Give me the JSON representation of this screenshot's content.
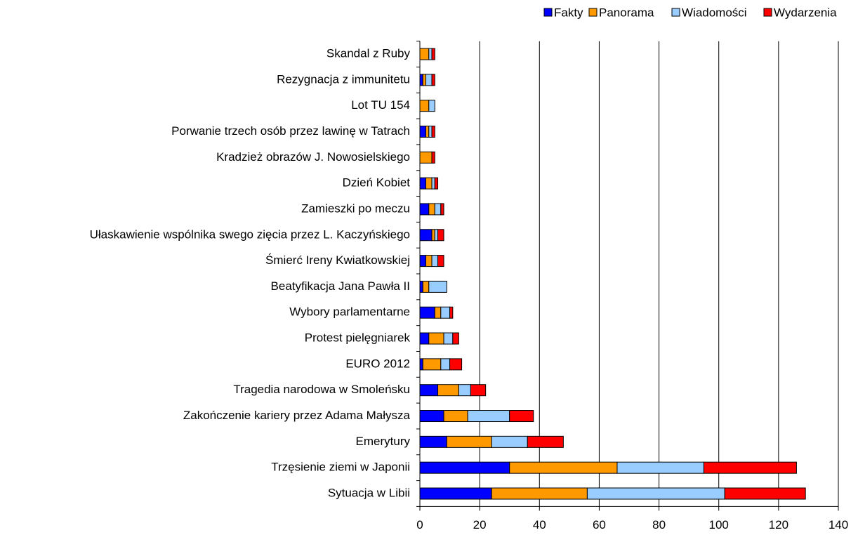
{
  "chart_data": {
    "type": "stacked_barh",
    "categories": [
      "Skandal z Ruby",
      "Rezygnacja z immunitetu",
      "Lot TU 154",
      "Porwanie trzech osób przez lawinę w Tatrach",
      "Kradzież obrazów J. Nowosielskiego",
      "Dzień Kobiet",
      "Zamieszki po meczu",
      "Ułaskawienie wspólnika swego zięcia przez L. Kaczyńskiego",
      "Śmierć Ireny Kwiatkowskiej",
      "Beatyfikacja Jana Pawła II",
      "Wybory parlamentarne",
      "Protest pielęgniarek",
      "EURO 2012",
      "Tragedia narodowa w Smoleńsku",
      "Zakończenie kariery przez Adama Małysza",
      "Emerytury",
      "Trzęsienie ziemi w Japonii",
      "Sytuacja w Libii"
    ],
    "series": [
      {
        "name": "Fakty",
        "color": "#0000ff",
        "values": [
          0,
          1,
          0,
          2,
          0,
          2,
          3,
          4,
          2,
          1,
          5,
          3,
          1,
          6,
          8,
          9,
          30,
          24
        ]
      },
      {
        "name": "Panorama",
        "color": "#ff9900",
        "values": [
          3,
          1,
          3,
          1,
          4,
          2,
          2,
          1,
          2,
          2,
          2,
          5,
          6,
          7,
          8,
          15,
          36,
          32
        ]
      },
      {
        "name": "Wiadomości",
        "color": "#99ccff",
        "values": [
          1,
          2,
          2,
          1,
          0,
          1,
          2,
          1,
          2,
          6,
          3,
          3,
          3,
          4,
          14,
          12,
          29,
          46
        ]
      },
      {
        "name": "Wydarzenia",
        "color": "#ff0000",
        "values": [
          1,
          1,
          0,
          1,
          1,
          1,
          1,
          2,
          2,
          0,
          1,
          2,
          4,
          5,
          8,
          12,
          31,
          27
        ]
      }
    ],
    "xlim": [
      0,
      140
    ],
    "xticks": [
      0,
      20,
      40,
      60,
      80,
      100,
      120,
      140
    ],
    "grid": true,
    "legend": "top"
  }
}
